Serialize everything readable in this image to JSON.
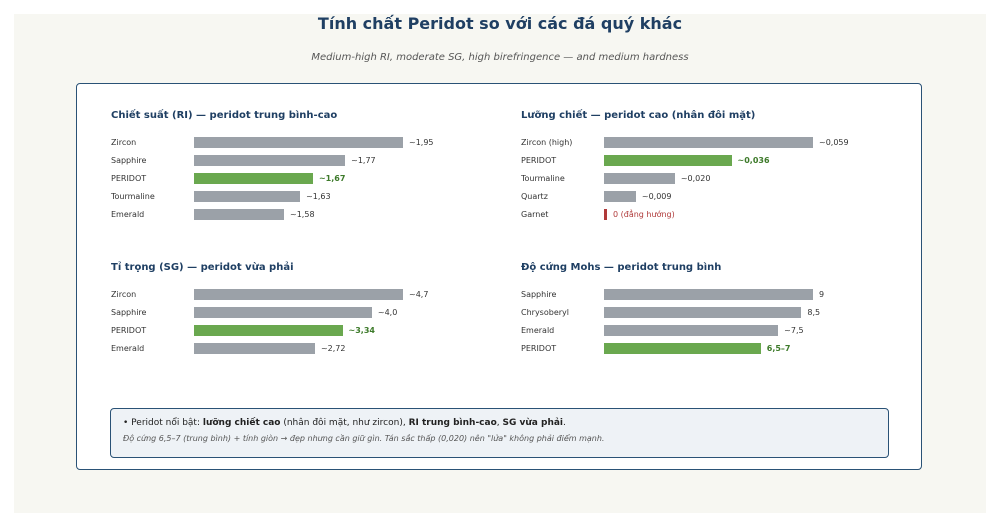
{
  "title": "Tính chất Peridot so với các đá quý khác",
  "subtitle": "Medium-high RI, moderate SG, high birefringence — and medium hardness",
  "colors": {
    "highlight": "#6aa84f",
    "other": "#9ba1a8",
    "warning": "#b03a3a",
    "accent": "#1f3f63"
  },
  "chart_data": [
    {
      "type": "bar",
      "orientation": "horizontal",
      "title": "Chiết suất (RI) — peridot trung bình-cao",
      "categories": [
        "Zircon",
        "Sapphire",
        "PERIDOT",
        "Tourmaline",
        "Emerald"
      ],
      "values": [
        1.95,
        1.77,
        1.67,
        1.63,
        1.58
      ],
      "value_labels": [
        "~1,95",
        "~1,77",
        "~1,67",
        "~1,63",
        "~1,58"
      ],
      "highlight": "PERIDOT",
      "xlim": [
        1.3,
        1.95
      ]
    },
    {
      "type": "bar",
      "orientation": "horizontal",
      "title": "Lưỡng chiết — peridot cao (nhân đôi mặt)",
      "categories": [
        "Zircon (high)",
        "PERIDOT",
        "Tourmaline",
        "Quartz",
        "Garnet"
      ],
      "values": [
        0.059,
        0.036,
        0.02,
        0.009,
        0
      ],
      "value_labels": [
        "~0,059",
        "~0,036",
        "~0,020",
        "~0,009",
        "0 (đẳng hướng)"
      ],
      "highlight": "PERIDOT",
      "xlim": [
        0,
        0.059
      ]
    },
    {
      "type": "bar",
      "orientation": "horizontal",
      "title": "Tỉ trọng (SG) — peridot vừa phải",
      "categories": [
        "Zircon",
        "Sapphire",
        "PERIDOT",
        "Emerald"
      ],
      "values": [
        4.7,
        4.0,
        3.34,
        2.72
      ],
      "value_labels": [
        "~4,7",
        "~4,0",
        "~3,34",
        "~2,72"
      ],
      "highlight": "PERIDOT",
      "xlim": [
        0,
        4.7
      ]
    },
    {
      "type": "bar",
      "orientation": "horizontal",
      "title": "Độ cứng Mohs — peridot trung bình",
      "categories": [
        "Sapphire",
        "Chrysoberyl",
        "Emerald",
        "PERIDOT"
      ],
      "values": [
        9,
        8.5,
        7.5,
        6.75
      ],
      "value_labels": [
        "9",
        "8,5",
        "~7,5",
        "6,5–7"
      ],
      "highlight": "PERIDOT",
      "xlim": [
        0,
        9
      ]
    }
  ],
  "note": {
    "line1_parts": [
      {
        "text": "• Peridot nổi bật: ",
        "bold": false
      },
      {
        "text": "lưỡng chiết cao",
        "bold": true
      },
      {
        "text": " (nhân đôi mặt, như zircon), ",
        "bold": false
      },
      {
        "text": "RI trung bình-cao",
        "bold": true
      },
      {
        "text": ", ",
        "bold": false
      },
      {
        "text": "SG vừa phải",
        "bold": true
      },
      {
        "text": ".",
        "bold": false
      }
    ],
    "line2": "Độ cứng 6,5–7 (trung bình) + tính giòn → đẹp nhưng cần giữ gìn. Tán sắc thấp (0,020) nên \"lửa\" không phải điểm mạnh."
  }
}
